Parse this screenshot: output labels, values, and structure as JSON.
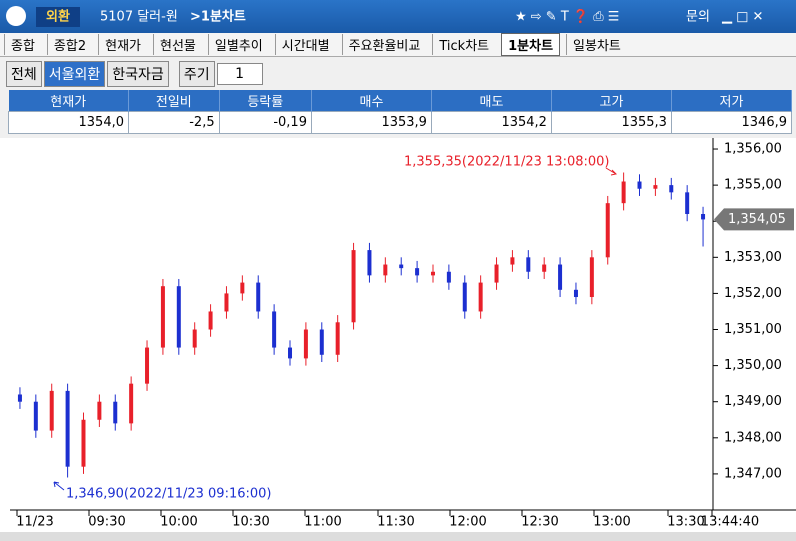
{
  "window": {
    "menu_label": "외환",
    "code_title": "5107 달러-원",
    "screen_title": ">1분차트",
    "menu_items": [
      "문의"
    ]
  },
  "tabs": [
    "종합",
    "종합2",
    "현재가",
    "현선물",
    "일별추이",
    "시간대별",
    "주요환율비교",
    "Tick차트",
    "1분차트",
    "일봉차트"
  ],
  "active_tab": 8,
  "toolbar": {
    "buttons": [
      "전체",
      "서울외환",
      "한국자금"
    ],
    "active_button": 1,
    "period_label": "주기",
    "period_value": "1"
  },
  "quote_table": {
    "headers": [
      "현재가",
      "전일비",
      "등락률",
      "매수",
      "매도",
      "고가",
      "저가"
    ],
    "values": [
      "1354,0",
      "-2,5",
      "-0,19",
      "1353,9",
      "1354,2",
      "1355,3",
      "1346,9"
    ]
  },
  "chart_data": {
    "type": "candlestick",
    "open": [
      1349.2,
      1349.0,
      1348.2,
      1349.3,
      1347.2,
      1348.5,
      1349.0,
      1348.4,
      1349.5,
      1350.5,
      1352.2,
      1350.5,
      1351.0,
      1351.5,
      1352.0,
      1352.3,
      1351.5,
      1350.5,
      1350.2,
      1351.0,
      1350.3,
      1351.2,
      1353.2,
      1352.5,
      1352.8,
      1352.7,
      1352.5,
      1352.6,
      1352.3,
      1351.5,
      1352.3,
      1352.8,
      1353.0,
      1352.6,
      1352.8,
      1352.1,
      1351.9,
      1353.0,
      1354.5,
      1355.1,
      1354.9,
      1355.0,
      1354.8,
      1354.2
    ],
    "high": [
      1349.4,
      1349.2,
      1349.5,
      1349.5,
      1348.7,
      1349.2,
      1349.2,
      1349.7,
      1350.7,
      1352.4,
      1352.4,
      1351.2,
      1351.7,
      1352.2,
      1352.5,
      1352.5,
      1351.7,
      1350.7,
      1351.2,
      1351.2,
      1351.4,
      1353.4,
      1353.4,
      1353.0,
      1353.0,
      1352.9,
      1352.8,
      1352.8,
      1352.5,
      1352.5,
      1353.0,
      1353.2,
      1353.2,
      1353.0,
      1353.0,
      1352.3,
      1353.2,
      1354.7,
      1355.35,
      1355.3,
      1355.2,
      1355.2,
      1355.0,
      1354.4
    ],
    "low": [
      1348.8,
      1348.0,
      1348.0,
      1346.9,
      1347.0,
      1348.3,
      1348.2,
      1348.2,
      1349.3,
      1350.3,
      1350.3,
      1350.3,
      1350.8,
      1351.3,
      1351.8,
      1351.3,
      1350.3,
      1350.0,
      1350.0,
      1350.1,
      1350.1,
      1351.0,
      1352.3,
      1352.3,
      1352.5,
      1352.3,
      1352.3,
      1352.1,
      1351.3,
      1351.3,
      1352.1,
      1352.6,
      1352.4,
      1352.4,
      1351.9,
      1351.7,
      1351.7,
      1352.8,
      1354.3,
      1354.7,
      1354.7,
      1354.6,
      1354.0,
      1353.3
    ],
    "close": [
      1349.0,
      1348.2,
      1349.3,
      1347.2,
      1348.5,
      1349.0,
      1348.4,
      1349.5,
      1350.5,
      1352.2,
      1350.5,
      1351.0,
      1351.5,
      1352.0,
      1352.3,
      1351.5,
      1350.5,
      1350.2,
      1351.0,
      1350.3,
      1351.2,
      1353.2,
      1352.5,
      1352.8,
      1352.7,
      1352.5,
      1352.6,
      1352.3,
      1351.5,
      1352.3,
      1352.8,
      1353.0,
      1352.6,
      1352.8,
      1352.1,
      1351.9,
      1353.0,
      1354.5,
      1355.1,
      1354.9,
      1355.0,
      1354.8,
      1354.2,
      1354.05
    ],
    "up_color": "#e8202a",
    "down_color": "#1c2fd0",
    "ylim": [
      1346.0,
      1356.25
    ],
    "yticks": [
      {
        "value": 1347,
        "label": "1,347,00"
      },
      {
        "value": 1348,
        "label": "1,348,00"
      },
      {
        "value": 1349,
        "label": "1,349,00"
      },
      {
        "value": 1350,
        "label": "1,350,00"
      },
      {
        "value": 1351,
        "label": "1,351,00"
      },
      {
        "value": 1352,
        "label": "1,352,00"
      },
      {
        "value": 1353,
        "label": "1,353,00"
      },
      {
        "value": 1354,
        "label": "1,354,00"
      },
      {
        "value": 1355,
        "label": "1,355,00"
      },
      {
        "value": 1356,
        "label": "1,356,00"
      }
    ],
    "x_labels": [
      "11/23",
      "09:30",
      "10:00",
      "10:30",
      "11:00",
      "11:30",
      "12:00",
      "12:30",
      "13:00",
      "13:30",
      "13:44:40"
    ],
    "last_price": 1354.05,
    "last_price_label": "1,354,05",
    "high_annotation": "1,355,35(2022/11/23 13:08:00)",
    "low_annotation": "1,346,90(2022/11/23 09:16:00)"
  }
}
